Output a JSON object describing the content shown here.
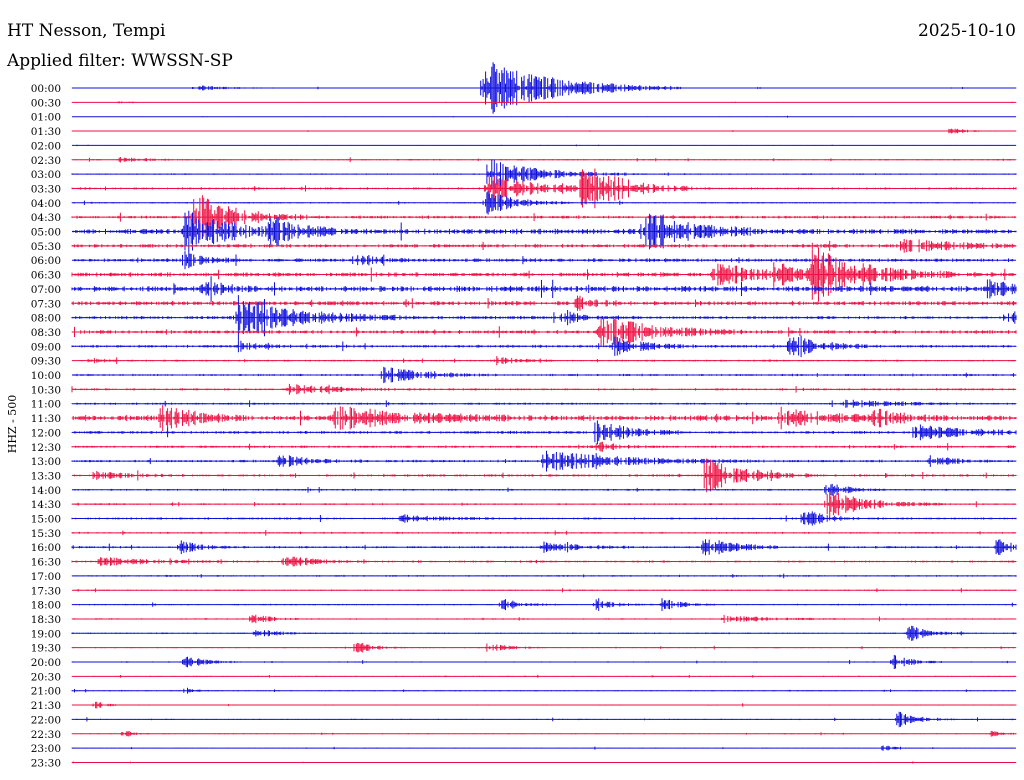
{
  "header": {
    "station": "HT Nesson, Tempi",
    "date": "2025-10-10",
    "filter": "Applied filter: WWSSN-SP"
  },
  "chart_data": {
    "type": "line",
    "title": "HT Nesson, Tempi",
    "subtitle": "Applied filter: WWSSN-SP",
    "date": "2025-10-10",
    "ylabel": "HHZ - 500",
    "xlabel": "",
    "colors": [
      "#1010dd",
      "#ee1144"
    ],
    "rows": [
      "00:00",
      "00:30",
      "01:00",
      "01:30",
      "02:00",
      "02:30",
      "03:00",
      "03:30",
      "04:00",
      "04:30",
      "05:00",
      "05:30",
      "06:00",
      "06:30",
      "07:00",
      "07:30",
      "08:00",
      "08:30",
      "09:00",
      "09:30",
      "10:00",
      "10:30",
      "11:00",
      "11:30",
      "12:00",
      "12:30",
      "13:00",
      "13:30",
      "14:00",
      "14:30",
      "15:00",
      "15:30",
      "16:00",
      "16:30",
      "17:00",
      "17:30",
      "18:00",
      "18:30",
      "19:00",
      "19:30",
      "20:00",
      "20:30",
      "21:00",
      "21:30",
      "22:00",
      "22:30",
      "23:00",
      "23:30"
    ],
    "noise": [
      0.4,
      0.3,
      0.3,
      0.3,
      0.3,
      0.8,
      0.8,
      1.2,
      0.8,
      1.6,
      3.0,
      2.0,
      2.0,
      2.4,
      3.2,
      2.4,
      1.8,
      2.0,
      1.6,
      1.0,
      1.2,
      1.2,
      1.2,
      3.0,
      1.6,
      1.4,
      1.4,
      1.4,
      1.0,
      1.0,
      1.2,
      1.0,
      1.2,
      1.2,
      0.9,
      0.8,
      0.8,
      0.8,
      0.8,
      0.7,
      0.7,
      0.6,
      0.6,
      0.6,
      0.7,
      0.5,
      0.5,
      0.5
    ],
    "events": [
      {
        "row": 0,
        "x": 0.13,
        "amp": 3,
        "dur": 0.03
      },
      {
        "row": 0,
        "x": 0.435,
        "amp": 30,
        "dur": 0.07
      },
      {
        "row": 1,
        "x": 0.05,
        "amp": 1,
        "dur": 0.01
      },
      {
        "row": 3,
        "x": 0.93,
        "amp": 3,
        "dur": 0.02
      },
      {
        "row": 5,
        "x": 0.05,
        "amp": 2,
        "dur": 0.03
      },
      {
        "row": 6,
        "x": 0.44,
        "amp": 16,
        "dur": 0.05
      },
      {
        "row": 7,
        "x": 0.44,
        "amp": 14,
        "dur": 0.05
      },
      {
        "row": 7,
        "x": 0.54,
        "amp": 26,
        "dur": 0.04
      },
      {
        "row": 8,
        "x": 0.44,
        "amp": 12,
        "dur": 0.03
      },
      {
        "row": 9,
        "x": 0.13,
        "amp": 26,
        "dur": 0.04
      },
      {
        "row": 10,
        "x": 0.12,
        "amp": 20,
        "dur": 0.05
      },
      {
        "row": 10,
        "x": 0.21,
        "amp": 12,
        "dur": 0.03
      },
      {
        "row": 10,
        "x": 0.605,
        "amp": 24,
        "dur": 0.04
      },
      {
        "row": 11,
        "x": 0.88,
        "amp": 8,
        "dur": 0.05
      },
      {
        "row": 12,
        "x": 0.12,
        "amp": 8,
        "dur": 0.02
      },
      {
        "row": 12,
        "x": 0.3,
        "amp": 8,
        "dur": 0.02
      },
      {
        "row": 13,
        "x": 0.68,
        "amp": 12,
        "dur": 0.04
      },
      {
        "row": 13,
        "x": 0.74,
        "amp": 10,
        "dur": 0.04
      },
      {
        "row": 13,
        "x": 0.785,
        "amp": 26,
        "dur": 0.05
      },
      {
        "row": 14,
        "x": 0.97,
        "amp": 8,
        "dur": 0.03
      },
      {
        "row": 14,
        "x": 0.14,
        "amp": 8,
        "dur": 0.02
      },
      {
        "row": 15,
        "x": 0.535,
        "amp": 7,
        "dur": 0.02
      },
      {
        "row": 16,
        "x": 0.175,
        "amp": 22,
        "dur": 0.06
      },
      {
        "row": 16,
        "x": 0.52,
        "amp": 8,
        "dur": 0.02
      },
      {
        "row": 16,
        "x": 0.99,
        "amp": 8,
        "dur": 0.02
      },
      {
        "row": 17,
        "x": 0.56,
        "amp": 18,
        "dur": 0.05
      },
      {
        "row": 18,
        "x": 0.575,
        "amp": 10,
        "dur": 0.03
      },
      {
        "row": 18,
        "x": 0.76,
        "amp": 12,
        "dur": 0.03
      },
      {
        "row": 18,
        "x": 0.175,
        "amp": 6,
        "dur": 0.02
      },
      {
        "row": 19,
        "x": 0.02,
        "amp": 4,
        "dur": 0.01
      },
      {
        "row": 19,
        "x": 0.45,
        "amp": 5,
        "dur": 0.02
      },
      {
        "row": 20,
        "x": 0.33,
        "amp": 8,
        "dur": 0.04
      },
      {
        "row": 21,
        "x": 0.23,
        "amp": 5,
        "dur": 0.05
      },
      {
        "row": 22,
        "x": 0.82,
        "amp": 4,
        "dur": 0.05
      },
      {
        "row": 23,
        "x": 0.095,
        "amp": 14,
        "dur": 0.03
      },
      {
        "row": 23,
        "x": 0.28,
        "amp": 12,
        "dur": 0.07
      },
      {
        "row": 23,
        "x": 0.75,
        "amp": 12,
        "dur": 0.04
      },
      {
        "row": 23,
        "x": 0.85,
        "amp": 8,
        "dur": 0.03
      },
      {
        "row": 24,
        "x": 0.555,
        "amp": 14,
        "dur": 0.03
      },
      {
        "row": 24,
        "x": 0.89,
        "amp": 8,
        "dur": 0.06
      },
      {
        "row": 25,
        "x": 0.56,
        "amp": 4,
        "dur": 0.02
      },
      {
        "row": 26,
        "x": 0.22,
        "amp": 6,
        "dur": 0.03
      },
      {
        "row": 26,
        "x": 0.5,
        "amp": 10,
        "dur": 0.08
      },
      {
        "row": 26,
        "x": 0.91,
        "amp": 6,
        "dur": 0.02
      },
      {
        "row": 27,
        "x": 0.67,
        "amp": 18,
        "dur": 0.04
      },
      {
        "row": 27,
        "x": 0.02,
        "amp": 5,
        "dur": 0.03
      },
      {
        "row": 28,
        "x": 0.8,
        "amp": 8,
        "dur": 0.02
      },
      {
        "row": 29,
        "x": 0.8,
        "amp": 14,
        "dur": 0.04
      },
      {
        "row": 30,
        "x": 0.775,
        "amp": 10,
        "dur": 0.02
      },
      {
        "row": 30,
        "x": 0.35,
        "amp": 4,
        "dur": 0.04
      },
      {
        "row": 32,
        "x": 0.67,
        "amp": 12,
        "dur": 0.03
      },
      {
        "row": 32,
        "x": 0.115,
        "amp": 7,
        "dur": 0.02
      },
      {
        "row": 32,
        "x": 0.5,
        "amp": 6,
        "dur": 0.03
      },
      {
        "row": 32,
        "x": 0.98,
        "amp": 8,
        "dur": 0.03
      },
      {
        "row": 33,
        "x": 0.225,
        "amp": 6,
        "dur": 0.03
      },
      {
        "row": 33,
        "x": 0.03,
        "amp": 4,
        "dur": 0.05
      },
      {
        "row": 36,
        "x": 0.455,
        "amp": 6,
        "dur": 0.02
      },
      {
        "row": 36,
        "x": 0.555,
        "amp": 5,
        "dur": 0.02
      },
      {
        "row": 36,
        "x": 0.625,
        "amp": 6,
        "dur": 0.02
      },
      {
        "row": 37,
        "x": 0.19,
        "amp": 5,
        "dur": 0.02
      },
      {
        "row": 37,
        "x": 0.69,
        "amp": 4,
        "dur": 0.04
      },
      {
        "row": 38,
        "x": 0.885,
        "amp": 9,
        "dur": 0.02
      },
      {
        "row": 38,
        "x": 0.195,
        "amp": 4,
        "dur": 0.02
      },
      {
        "row": 39,
        "x": 0.3,
        "amp": 5,
        "dur": 0.02
      },
      {
        "row": 39,
        "x": 0.44,
        "amp": 5,
        "dur": 0.02
      },
      {
        "row": 40,
        "x": 0.12,
        "amp": 6,
        "dur": 0.02
      },
      {
        "row": 40,
        "x": 0.87,
        "amp": 7,
        "dur": 0.02
      },
      {
        "row": 42,
        "x": 0.12,
        "amp": 4,
        "dur": 0.01
      },
      {
        "row": 43,
        "x": 0.025,
        "amp": 4,
        "dur": 0.01
      },
      {
        "row": 44,
        "x": 0.875,
        "amp": 8,
        "dur": 0.02
      },
      {
        "row": 45,
        "x": 0.055,
        "amp": 4,
        "dur": 0.01
      },
      {
        "row": 45,
        "x": 0.975,
        "amp": 4,
        "dur": 0.01
      },
      {
        "row": 46,
        "x": 0.86,
        "amp": 3,
        "dur": 0.01
      }
    ]
  }
}
